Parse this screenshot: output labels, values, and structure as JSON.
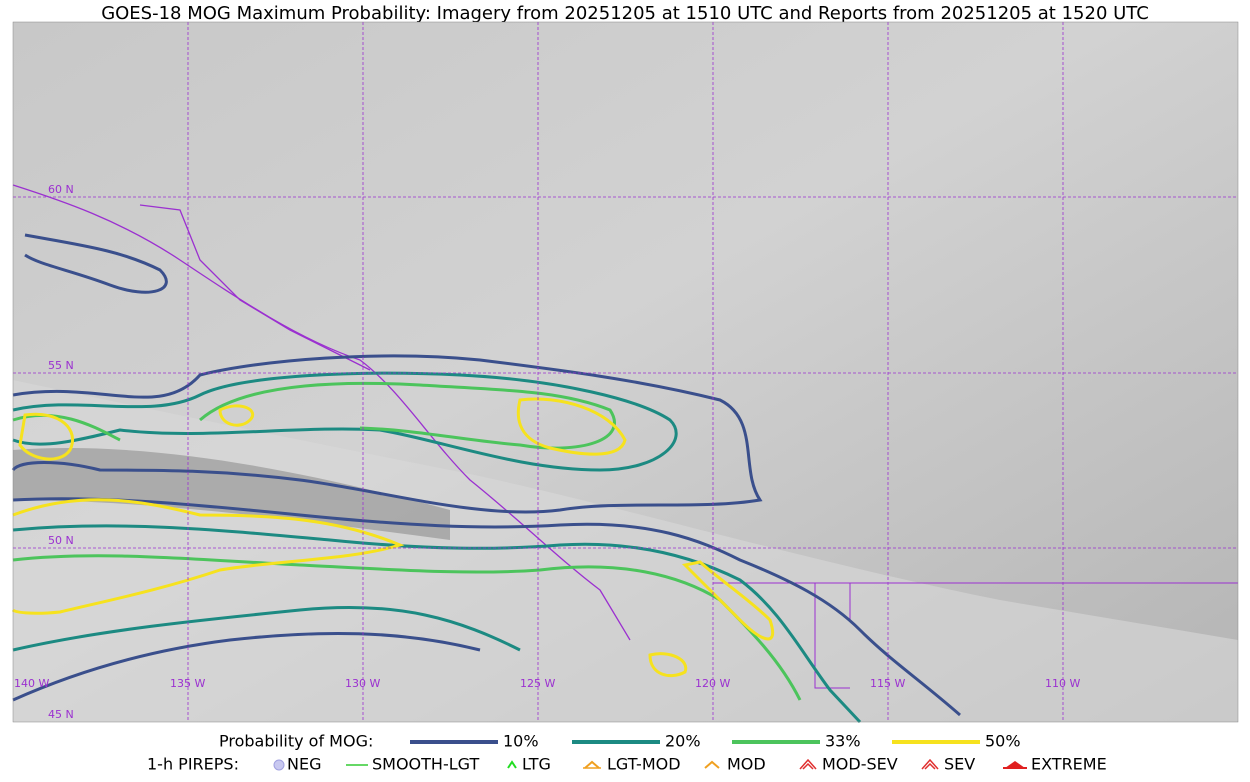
{
  "title": "GOES-18 MOG Maximum Probability: Imagery from 20251205 at 1510 UTC and Reports from 20251205 at 1520 UTC",
  "map": {
    "latitude_labels": [
      "60 N",
      "55 N",
      "50 N",
      "45 N"
    ],
    "longitude_labels": [
      "140 W",
      "135 W",
      "130 W",
      "125 W",
      "120 W",
      "115 W",
      "110 W"
    ]
  },
  "legend": {
    "probability_label": "Probability of MOG:",
    "levels": [
      {
        "label": "10%",
        "color": "#3a4f8c"
      },
      {
        "label": "20%",
        "color": "#1c8a82"
      },
      {
        "label": "33%",
        "color": "#4cc45c"
      },
      {
        "label": "50%",
        "color": "#f6e21e"
      }
    ],
    "pireps_label": "1-h PIREPS:",
    "pireps": [
      "NEG",
      "SMOOTH-LGT",
      "LTG",
      "LGT-MOD",
      "MOD",
      "MOD-SEV",
      "SEV",
      "EXTREME"
    ]
  }
}
